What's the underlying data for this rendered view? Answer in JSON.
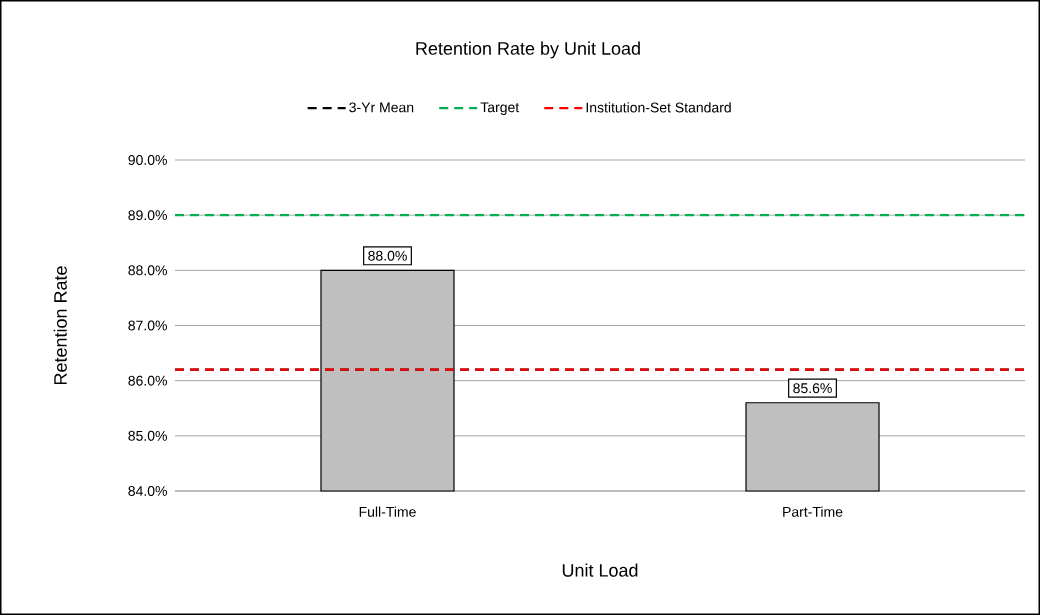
{
  "chart_data": {
    "type": "bar",
    "title": "Retention Rate by Unit Load",
    "xlabel": "Unit Load",
    "ylabel": "Retention Rate",
    "categories": [
      "Full-Time",
      "Part-Time"
    ],
    "values": [
      88.0,
      85.6
    ],
    "color": "#bfbfbf",
    "value_labels": [
      "88.0%",
      "85.6%"
    ],
    "ylim": [
      84,
      90
    ],
    "yticks": [
      {
        "value": 84,
        "label": "84.0%"
      },
      {
        "value": 85,
        "label": "85.0%"
      },
      {
        "value": 86,
        "label": "86.0%"
      },
      {
        "value": 87,
        "label": "87.0%"
      },
      {
        "value": 88,
        "label": "88.0%"
      },
      {
        "value": 89,
        "label": "89.0%"
      },
      {
        "value": 90,
        "label": "90.0%"
      }
    ],
    "grid": "y",
    "legend": "top",
    "ref_lines": [
      {
        "axis": "y",
        "value": 86.2,
        "label": "3-Yr Mean",
        "color": "#000000",
        "line_style": "dashed"
      },
      {
        "axis": "y",
        "value": 89.0,
        "label": "Target",
        "color": "#00b050",
        "line_style": "dashed"
      },
      {
        "axis": "y",
        "value": 86.2,
        "label": "Institution-Set Standard",
        "color": "#ff0000",
        "line_style": "dashed"
      }
    ]
  }
}
